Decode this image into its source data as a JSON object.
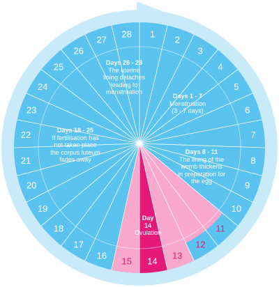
{
  "cycle": {
    "days": [
      "1",
      "2",
      "3",
      "4",
      "5",
      "6",
      "7",
      "8",
      "9",
      "10",
      "11",
      "12",
      "13",
      "14",
      "15",
      "16",
      "17",
      "18",
      "19",
      "20",
      "21",
      "22",
      "23",
      "24",
      "25",
      "26",
      "27",
      "28"
    ],
    "ovulation_day_index": 14,
    "fertile_window_day_indices": [
      11,
      12,
      13,
      15
    ]
  },
  "segments": {
    "menstruation": {
      "heading": "Days 1 - 7",
      "body": "Menstruation\n(3 - 7 days)"
    },
    "thickening": {
      "heading": "Days 8 - 11",
      "body": "The lining of the\nwomb thickens\nin preparation for\nthe egg"
    },
    "ovulation": {
      "heading": "Day\n14",
      "body": "Ovulation"
    },
    "corpus_luteum": {
      "heading": "Days 18 - 25",
      "body": "If fertilisation has\nnot taken place\nthe corpus luteum\nfades away"
    },
    "detachment": {
      "heading": "Days 26 - 28",
      "body": "The uterine\nlining detaches\nleading to\nmenstruation"
    }
  },
  "colors": {
    "outer_ring": "#c9ebf9",
    "wheel": "#5bc3f0",
    "ring_numbers": "#5bc3f0",
    "pink_light": "#f7a8cc",
    "pink_dark": "#e5197a",
    "pink_text": "#e5197a",
    "divider": "#ffffff"
  }
}
